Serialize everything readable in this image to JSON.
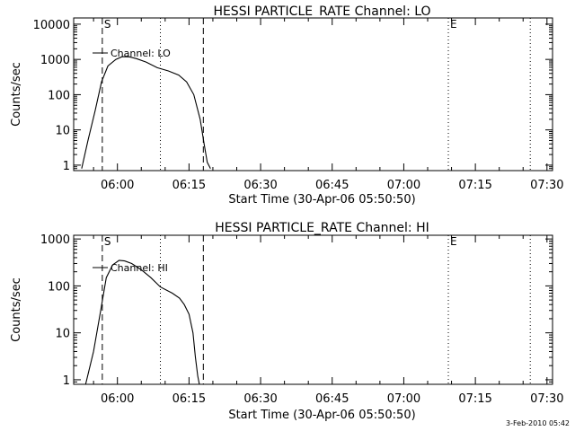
{
  "footer_date": "3-Feb-2010 05:42",
  "chart_data": [
    {
      "type": "line",
      "title": "HESSI PARTICLE_RATE Channel: LO",
      "xlabel": "Start Time (30-Apr-06 05:50:50)",
      "ylabel": "Counts/sec",
      "yscale": "log",
      "ylim": [
        0.7,
        15000
      ],
      "xlim": [
        "05:50:50",
        "07:31:10"
      ],
      "x_ticks": [
        "06:00",
        "06:15",
        "06:30",
        "06:45",
        "07:00",
        "07:15",
        "07:30"
      ],
      "y_ticks": [
        "1",
        "10",
        "100",
        "1000",
        "10000"
      ],
      "legend": "Channel: LO",
      "series": [
        {
          "name": "Channel: LO",
          "x": [
            "05:52:30",
            "05:53:50",
            "05:55:20",
            "05:56:40",
            "05:58:00",
            "05:59:40",
            "06:01:00",
            "06:02:30",
            "06:04:00",
            "06:06:00",
            "06:08:20",
            "06:10:40",
            "06:12:50",
            "06:14:30",
            "06:16:00",
            "06:17:20",
            "06:18:10",
            "06:18:50",
            "06:19:30"
          ],
          "values": [
            0.8,
            5,
            35,
            230,
            650,
            1000,
            1200,
            1180,
            1050,
            840,
            580,
            470,
            360,
            230,
            100,
            20,
            4,
            1.2,
            0.8
          ]
        }
      ],
      "markers": [
        {
          "label": "S",
          "time": "05:56:50",
          "style": "dashed"
        },
        {
          "label": "",
          "time": "06:09:00",
          "style": "dotted"
        },
        {
          "label": "",
          "time": "06:18:00",
          "style": "dashed"
        },
        {
          "label": "E",
          "time": "07:09:20",
          "style": "dotted"
        },
        {
          "label": "",
          "time": "07:26:30",
          "style": "dotted"
        }
      ]
    },
    {
      "type": "line",
      "title": "HESSI PARTICLE_RATE Channel: HI",
      "xlabel": "Start Time (30-Apr-06 05:50:50)",
      "ylabel": "Counts/sec",
      "yscale": "log",
      "ylim": [
        0.8,
        1200
      ],
      "xlim": [
        "05:50:50",
        "07:31:10"
      ],
      "x_ticks": [
        "06:00",
        "06:15",
        "06:30",
        "06:45",
        "07:00",
        "07:15",
        "07:30"
      ],
      "y_ticks": [
        "1",
        "10",
        "100",
        "1000"
      ],
      "legend": "Channel: HI",
      "series": [
        {
          "name": "Channel: HI",
          "x": [
            "05:53:20",
            "05:55:00",
            "05:56:30",
            "05:57:40",
            "05:59:00",
            "06:00:20",
            "06:01:30",
            "06:03:00",
            "06:05:00",
            "06:07:00",
            "06:09:00",
            "06:11:30",
            "06:13:00",
            "06:14:00",
            "06:15:00",
            "06:15:50",
            "06:16:20",
            "06:16:50",
            "06:17:10"
          ],
          "values": [
            0.8,
            4,
            30,
            150,
            280,
            350,
            340,
            300,
            220,
            150,
            95,
            70,
            55,
            40,
            25,
            10,
            3,
            1.2,
            0.8
          ]
        }
      ],
      "markers": [
        {
          "label": "S",
          "time": "05:56:50",
          "style": "dashed"
        },
        {
          "label": "",
          "time": "06:09:00",
          "style": "dotted"
        },
        {
          "label": "",
          "time": "06:18:00",
          "style": "dashed"
        },
        {
          "label": "E",
          "time": "07:09:20",
          "style": "dotted"
        },
        {
          "label": "",
          "time": "07:26:30",
          "style": "dotted"
        }
      ]
    }
  ]
}
